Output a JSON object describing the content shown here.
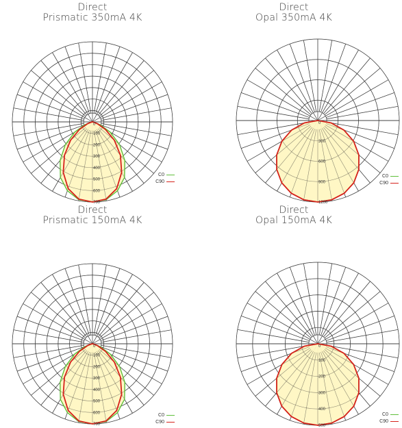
{
  "colors": {
    "c0": "#5fbf3a",
    "c90": "#d6221b",
    "fill": "#fff7c2",
    "grid": "#3a3a3a"
  },
  "legend": {
    "c0": "C0",
    "c90": "C90"
  },
  "chart_data": [
    {
      "type": "polar",
      "title_line1": "Direct",
      "title_line2": "Prismatic 350mA 4K",
      "rmax": 700,
      "ticks": [
        0,
        100,
        200,
        300,
        400,
        500,
        600,
        700
      ],
      "series": [
        {
          "name": "C0",
          "angles_deg": [
            0,
            10,
            20,
            30,
            40,
            50,
            60,
            70,
            80,
            90
          ],
          "values": [
            700,
            690,
            640,
            560,
            440,
            310,
            180,
            70,
            15,
            0
          ]
        },
        {
          "name": "C90",
          "angles_deg": [
            0,
            10,
            20,
            30,
            40,
            50,
            60,
            70,
            80,
            90
          ],
          "values": [
            700,
            685,
            620,
            510,
            380,
            250,
            130,
            45,
            8,
            0
          ]
        }
      ]
    },
    {
      "type": "polar",
      "title_line1": "Direct",
      "title_line2": "Opal 350mA 4K",
      "rmax": 1200,
      "ticks": [
        0,
        300,
        600,
        900,
        1200
      ],
      "series": [
        {
          "name": "C0",
          "angles_deg": [
            0,
            10,
            20,
            30,
            40,
            50,
            60,
            70,
            80,
            90
          ],
          "values": [
            1200,
            1185,
            1140,
            1060,
            940,
            790,
            610,
            410,
            200,
            0
          ]
        },
        {
          "name": "C90",
          "angles_deg": [
            0,
            10,
            20,
            30,
            40,
            50,
            60,
            70,
            80,
            90
          ],
          "values": [
            1200,
            1185,
            1140,
            1060,
            940,
            790,
            610,
            410,
            200,
            0
          ]
        }
      ]
    },
    {
      "type": "polar",
      "title_line1": "Direct",
      "title_line2": "Prismatic 150mA 4K",
      "rmax": 700,
      "ticks": [
        0,
        100,
        200,
        300,
        400,
        500,
        600,
        700
      ],
      "series": [
        {
          "name": "C0",
          "angles_deg": [
            0,
            10,
            20,
            30,
            40,
            50,
            60,
            70,
            80,
            90
          ],
          "values": [
            700,
            690,
            640,
            560,
            440,
            310,
            180,
            70,
            15,
            0
          ]
        },
        {
          "name": "C90",
          "angles_deg": [
            0,
            10,
            20,
            30,
            40,
            50,
            60,
            70,
            80,
            90
          ],
          "values": [
            700,
            685,
            620,
            510,
            380,
            250,
            130,
            45,
            8,
            0
          ]
        }
      ]
    },
    {
      "type": "polar",
      "title_line1": "Direct",
      "title_line2": "Opal 150mA 4K",
      "rmax": 500,
      "ticks": [
        0,
        100,
        200,
        300,
        400,
        500
      ],
      "series": [
        {
          "name": "C0",
          "angles_deg": [
            0,
            10,
            20,
            30,
            40,
            50,
            60,
            70,
            80,
            90
          ],
          "values": [
            500,
            494,
            475,
            442,
            392,
            329,
            254,
            171,
            83,
            0
          ]
        },
        {
          "name": "C90",
          "angles_deg": [
            0,
            10,
            20,
            30,
            40,
            50,
            60,
            70,
            80,
            90
          ],
          "values": [
            500,
            494,
            475,
            442,
            392,
            329,
            254,
            171,
            83,
            0
          ]
        }
      ]
    }
  ]
}
